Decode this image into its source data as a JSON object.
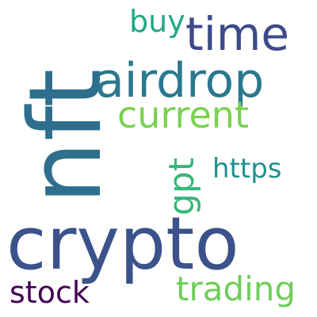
{
  "words": {
    "nft": {
      "text": "nft",
      "color": "#2e6f8e"
    },
    "crypto": {
      "text": "crypto",
      "color": "#3b528b"
    },
    "airdrop": {
      "text": "airdrop",
      "color": "#2a788e"
    },
    "time": {
      "text": "time",
      "color": "#3e4a89"
    },
    "current": {
      "text": "current",
      "color": "#7ad151"
    },
    "buy": {
      "text": "buy",
      "color": "#22a884"
    },
    "gpt": {
      "text": "gpt",
      "color": "#35b779"
    },
    "https": {
      "text": "https",
      "color": "#21918c"
    },
    "stock": {
      "text": "stock",
      "color": "#440154"
    },
    "trading": {
      "text": "trading",
      "color": "#6ece58"
    }
  }
}
